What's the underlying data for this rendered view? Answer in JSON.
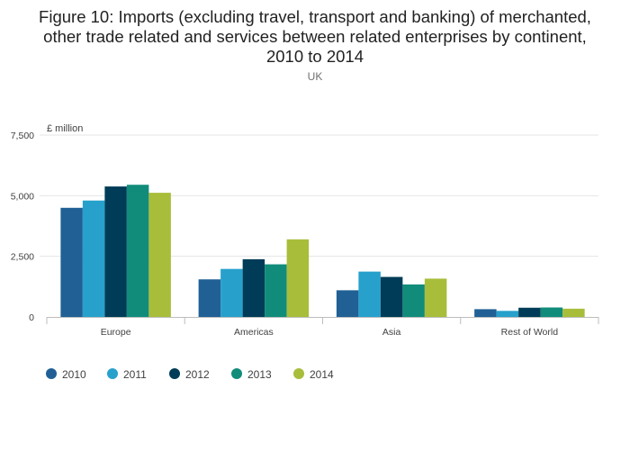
{
  "chart_data": {
    "type": "bar",
    "title_lines": [
      "Figure 10: Imports (excluding travel, transport and banking) of merchanted,",
      "other trade related and services between related enterprises by continent,",
      "2010 to 2014"
    ],
    "subtitle": "UK",
    "ylabel": "£ million",
    "ylim": [
      0,
      7500
    ],
    "yticks": [
      0,
      2500,
      5000,
      7500
    ],
    "ytick_labels": [
      "0",
      "2,500",
      "5,000",
      "7,500"
    ],
    "categories": [
      "Europe",
      "Americas",
      "Asia",
      "Rest of World"
    ],
    "series": [
      {
        "name": "2010",
        "color": "#206095",
        "values": [
          4500,
          1550,
          1100,
          320
        ]
      },
      {
        "name": "2011",
        "color": "#27a0cc",
        "values": [
          4800,
          1980,
          1870,
          250
        ]
      },
      {
        "name": "2012",
        "color": "#003c57",
        "values": [
          5380,
          2380,
          1650,
          380
        ]
      },
      {
        "name": "2013",
        "color": "#118c7b",
        "values": [
          5450,
          2170,
          1340,
          390
        ]
      },
      {
        "name": "2014",
        "color": "#a8bd3a",
        "values": [
          5120,
          3200,
          1580,
          340
        ]
      }
    ],
    "legend_position": "bottom-left",
    "grid": true
  }
}
